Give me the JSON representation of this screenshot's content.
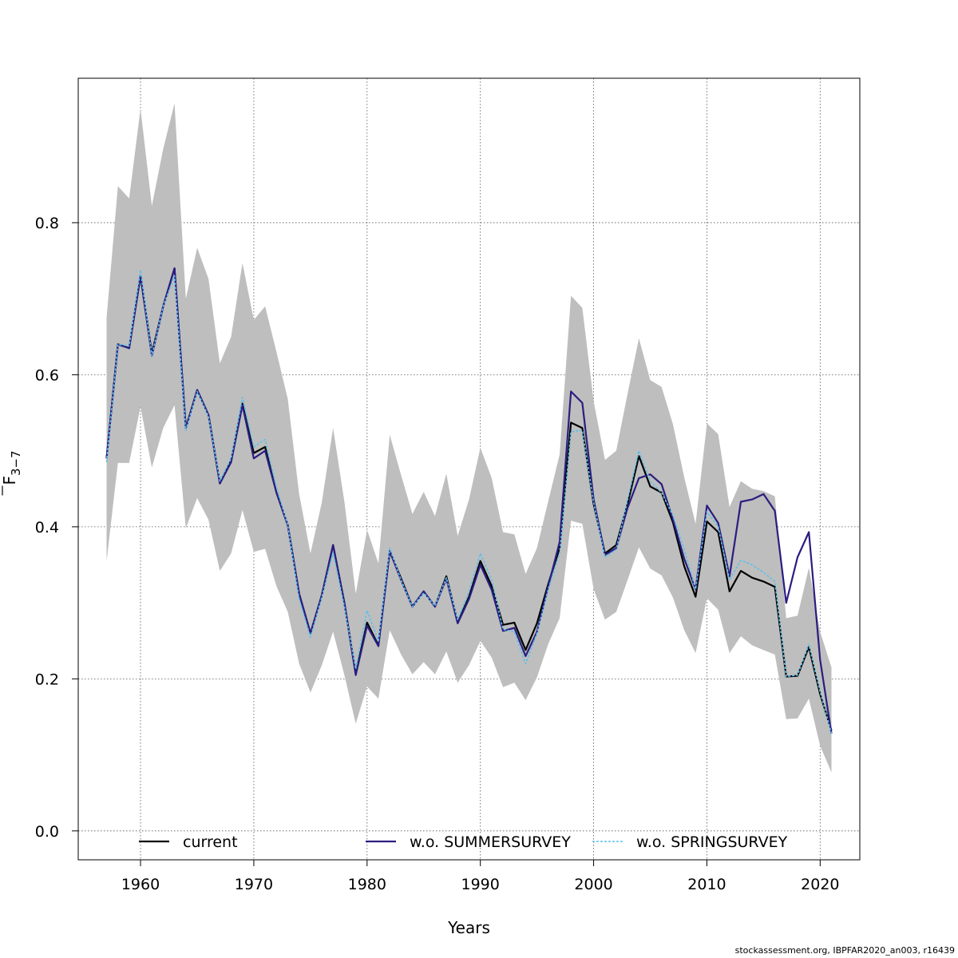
{
  "chart_data": {
    "type": "line",
    "xlabel": "Years",
    "ylabel_main": "F",
    "ylabel_sub": "3−7",
    "xlim": [
      1954.5,
      2023.5
    ],
    "ylim": [
      -0.038,
      0.99
    ],
    "xticks": [
      1960,
      1970,
      1980,
      1990,
      2000,
      2010,
      2020
    ],
    "yticks": [
      0.0,
      0.2,
      0.4,
      0.6,
      0.8
    ],
    "ytick_labels": [
      "0.0",
      "0.2",
      "0.4",
      "0.6",
      "0.8"
    ],
    "grid": true,
    "legend_position": "bottom",
    "x": [
      1957,
      1958,
      1959,
      1960,
      1961,
      1962,
      1963,
      1964,
      1965,
      1966,
      1967,
      1968,
      1969,
      1970,
      1971,
      1972,
      1973,
      1974,
      1975,
      1976,
      1977,
      1978,
      1979,
      1980,
      1981,
      1982,
      1983,
      1984,
      1985,
      1986,
      1987,
      1988,
      1989,
      1990,
      1991,
      1992,
      1993,
      1994,
      1995,
      1996,
      1997,
      1998,
      1999,
      2000,
      2001,
      2002,
      2003,
      2004,
      2005,
      2006,
      2007,
      2008,
      2009,
      2010,
      2011,
      2012,
      2013,
      2014,
      2015,
      2016,
      2017,
      2018,
      2019,
      2020,
      2021
    ],
    "band": {
      "color": "#bebebe",
      "upper": [
        0.675,
        0.848,
        0.832,
        0.95,
        0.822,
        0.897,
        0.957,
        0.7,
        0.767,
        0.726,
        0.615,
        0.65,
        0.747,
        0.672,
        0.69,
        0.63,
        0.568,
        0.443,
        0.365,
        0.432,
        0.53,
        0.433,
        0.312,
        0.396,
        0.352,
        0.521,
        0.468,
        0.417,
        0.446,
        0.414,
        0.47,
        0.388,
        0.436,
        0.504,
        0.464,
        0.393,
        0.39,
        0.338,
        0.372,
        0.434,
        0.495,
        0.704,
        0.688,
        0.565,
        0.488,
        0.5,
        0.575,
        0.648,
        0.593,
        0.584,
        0.535,
        0.465,
        0.404,
        0.536,
        0.522,
        0.426,
        0.46,
        0.45,
        0.447,
        0.44,
        0.28,
        0.283,
        0.346,
        0.262,
        0.215
      ],
      "lower": [
        0.355,
        0.484,
        0.484,
        0.558,
        0.478,
        0.53,
        0.56,
        0.398,
        0.438,
        0.409,
        0.342,
        0.365,
        0.422,
        0.367,
        0.371,
        0.322,
        0.288,
        0.22,
        0.182,
        0.218,
        0.262,
        0.205,
        0.141,
        0.19,
        0.174,
        0.264,
        0.232,
        0.206,
        0.222,
        0.206,
        0.236,
        0.195,
        0.218,
        0.25,
        0.228,
        0.189,
        0.195,
        0.172,
        0.202,
        0.246,
        0.28,
        0.408,
        0.404,
        0.318,
        0.278,
        0.288,
        0.33,
        0.373,
        0.345,
        0.336,
        0.307,
        0.264,
        0.234,
        0.306,
        0.291,
        0.234,
        0.256,
        0.244,
        0.238,
        0.232,
        0.147,
        0.148,
        0.174,
        0.112,
        0.077
      ]
    },
    "series": [
      {
        "name": "current",
        "color": "#000000",
        "values": [
          0.49,
          0.64,
          0.635,
          0.73,
          0.628,
          0.69,
          0.74,
          0.53,
          0.58,
          0.547,
          0.457,
          0.487,
          0.562,
          0.497,
          0.505,
          0.445,
          0.402,
          0.312,
          0.26,
          0.31,
          0.376,
          0.3,
          0.207,
          0.274,
          0.244,
          0.368,
          0.332,
          0.295,
          0.315,
          0.295,
          0.335,
          0.274,
          0.308,
          0.355,
          0.322,
          0.271,
          0.274,
          0.238,
          0.273,
          0.325,
          0.372,
          0.537,
          0.53,
          0.43,
          0.365,
          0.376,
          0.43,
          0.493,
          0.453,
          0.445,
          0.406,
          0.348,
          0.308,
          0.407,
          0.393,
          0.315,
          0.342,
          0.333,
          0.328,
          0.321,
          0.203,
          0.204,
          0.242,
          0.18,
          0.132
        ]
      },
      {
        "name": "w.o. SUMMERSURVEY",
        "color": "#2b1d80",
        "values": [
          0.49,
          0.64,
          0.635,
          0.73,
          0.625,
          0.69,
          0.74,
          0.53,
          0.58,
          0.547,
          0.457,
          0.485,
          0.56,
          0.49,
          0.5,
          0.445,
          0.402,
          0.312,
          0.26,
          0.31,
          0.376,
          0.3,
          0.205,
          0.27,
          0.243,
          0.368,
          0.33,
          0.295,
          0.315,
          0.295,
          0.332,
          0.273,
          0.305,
          0.35,
          0.317,
          0.263,
          0.267,
          0.23,
          0.262,
          0.322,
          0.38,
          0.578,
          0.563,
          0.436,
          0.363,
          0.372,
          0.425,
          0.464,
          0.469,
          0.456,
          0.41,
          0.358,
          0.318,
          0.428,
          0.405,
          0.335,
          0.433,
          0.436,
          0.443,
          0.421,
          0.3,
          0.36,
          0.393,
          0.225,
          0.128
        ]
      },
      {
        "name": "w.o. SPRINGSURVEY",
        "color": "#5bc0eb",
        "values": [
          0.485,
          0.64,
          0.638,
          0.738,
          0.625,
          0.69,
          0.73,
          0.527,
          0.578,
          0.545,
          0.46,
          0.49,
          0.57,
          0.505,
          0.515,
          0.452,
          0.402,
          0.305,
          0.255,
          0.307,
          0.366,
          0.295,
          0.213,
          0.29,
          0.25,
          0.372,
          0.33,
          0.295,
          0.313,
          0.296,
          0.333,
          0.278,
          0.315,
          0.365,
          0.33,
          0.265,
          0.262,
          0.22,
          0.26,
          0.318,
          0.365,
          0.525,
          0.527,
          0.432,
          0.36,
          0.37,
          0.435,
          0.5,
          0.46,
          0.445,
          0.415,
          0.37,
          0.318,
          0.42,
          0.4,
          0.33,
          0.356,
          0.35,
          0.34,
          0.328,
          0.203,
          0.205,
          0.245,
          0.183,
          0.128
        ]
      }
    ]
  },
  "footer_text": "stockassessment.org, IBPFAR2020_an003, r16439"
}
